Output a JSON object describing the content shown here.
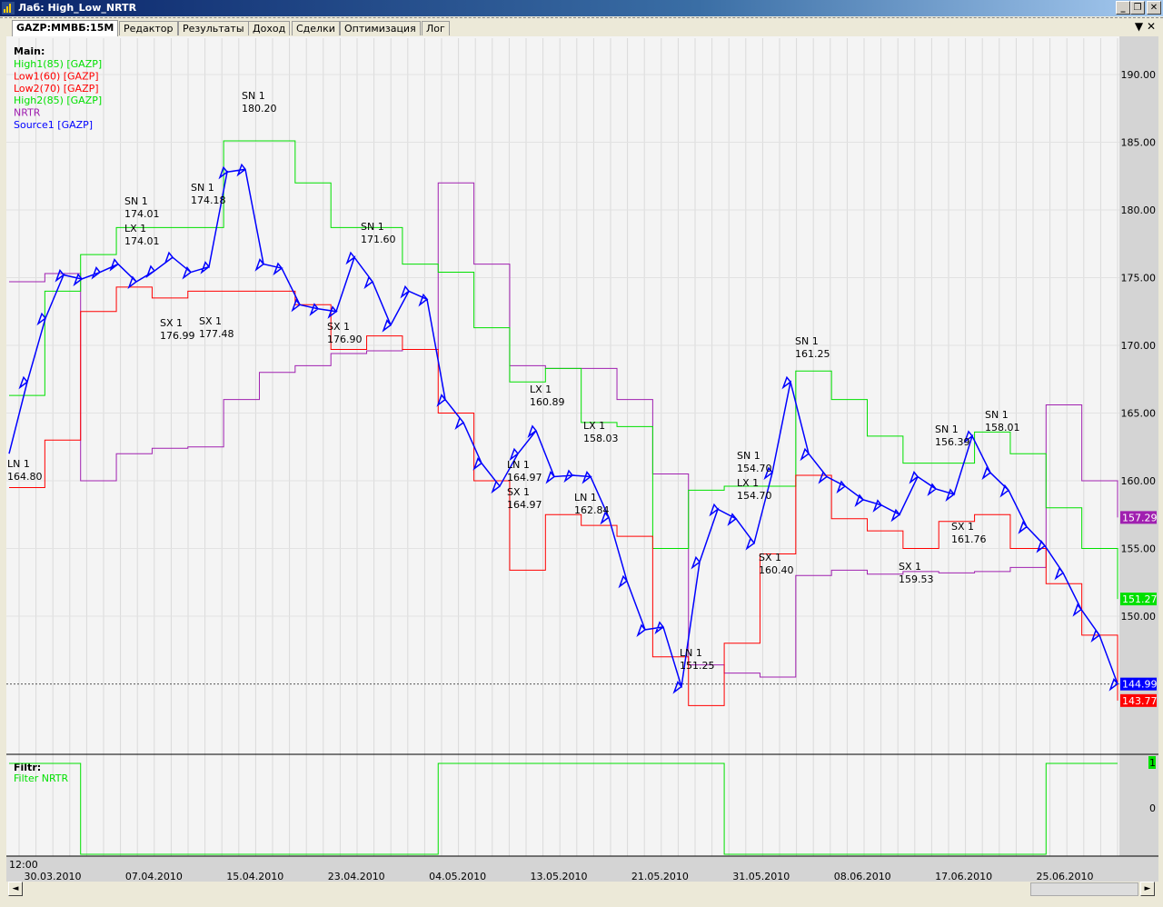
{
  "window": {
    "title": "Лаб: High_Low_NRTR",
    "minimize": "_",
    "restore": "❐",
    "close": "✕"
  },
  "tabs": [
    {
      "label": "GAZP:MMBБ:15M",
      "active": true
    },
    {
      "label": "Редактор"
    },
    {
      "label": "Результаты"
    },
    {
      "label": "Доход"
    },
    {
      "label": "Сделки"
    },
    {
      "label": "Оптимизация"
    },
    {
      "label": "Лог"
    }
  ],
  "tab_controls": {
    "menu": "▼",
    "close": "✕"
  },
  "colors": {
    "high": "#00e000",
    "low": "#ff0000",
    "nrtr": "#a020b0",
    "source": "#0000ff",
    "trend_down": "#8b0000",
    "filter": "#00e000"
  },
  "chart_data": [
    {
      "type": "line",
      "pane": "Main",
      "title": "Main:",
      "legend": [
        {
          "name": "High1(85) [GAZP]",
          "color": "#00e000"
        },
        {
          "name": "Low1(60) [GAZP]",
          "color": "#ff0000"
        },
        {
          "name": "Low2(70) [GAZP]",
          "color": "#ff0000"
        },
        {
          "name": "High2(85) [GAZP]",
          "color": "#00e000"
        },
        {
          "name": "NRTR",
          "color": "#a020b0"
        },
        {
          "name": "Source1 [GAZP]",
          "color": "#0000ff"
        }
      ],
      "ylim": [
        140,
        192
      ],
      "yticks": [
        150,
        155,
        160,
        165,
        170,
        175,
        180,
        185,
        190
      ],
      "ytick_labels": [
        "150.00",
        "155.00",
        "160.00",
        "165.00",
        "170.00",
        "175.00",
        "180.00",
        "185.00",
        "190.00"
      ],
      "series": [
        {
          "name": "Source1 [GAZP]",
          "values": [
            162.0,
            167.3,
            172,
            175.2,
            174.9,
            175.4,
            176,
            174.7,
            175.5,
            176.5,
            175.4,
            175.8,
            182.8,
            183,
            176,
            175.7,
            173,
            172.7,
            172.5,
            176.5,
            174.7,
            171.5,
            174,
            173.4,
            166,
            164.3,
            161.3,
            159.6,
            162,
            163.7,
            160.3,
            160.4,
            160.3,
            157.3,
            152.6,
            149,
            149.2,
            144.8,
            154,
            157.9,
            157.2,
            155.4,
            160.6,
            167.3,
            162,
            160.3,
            159.6,
            158.6,
            158.2,
            157.5,
            160.3,
            159.4,
            159,
            163.3,
            160.6,
            159.3,
            156.6,
            155.2,
            153.2,
            150.5,
            148.6,
            145
          ]
        },
        {
          "name": "High1(85) [GAZP]",
          "values": [
            166.3,
            174,
            176.7,
            178.7,
            178.7,
            178.7,
            185.1,
            185.1,
            182,
            178.7,
            178.7,
            176,
            175.4,
            171.3,
            167.3,
            168.3,
            164.3,
            164,
            155,
            159.3,
            159.6,
            159.6,
            168.1,
            166,
            163.3,
            161.3,
            161.3,
            163.6,
            162,
            158,
            155,
            151.27
          ]
        },
        {
          "name": "Low1(60) [GAZP]",
          "values": [
            159.5,
            163,
            172.5,
            174.3,
            173.5,
            174,
            174,
            174,
            173,
            169.7,
            170.7,
            169.7,
            165,
            160,
            153.4,
            157.5,
            156.7,
            155.9,
            147,
            143.4,
            148,
            154.6,
            160.4,
            157.2,
            156.3,
            155,
            157,
            157.5,
            155,
            152.4,
            148.6,
            143.77
          ]
        },
        {
          "name": "NRTR",
          "values": [
            174.7,
            175.3,
            160,
            162,
            162.4,
            162.5,
            166,
            168,
            168.5,
            169.4,
            169.6,
            169.7,
            182,
            176,
            168.5,
            168.3,
            168.3,
            166,
            160.5,
            146.4,
            145.8,
            145.5,
            153,
            153.4,
            153.1,
            153.3,
            153.2,
            153.3,
            153.6,
            165.6,
            160,
            157.29
          ]
        }
      ],
      "last_values": [
        {
          "value": "157.29",
          "color": "#a020b0"
        },
        {
          "value": "151.27",
          "color": "#00e000"
        },
        {
          "value": "144.99",
          "color": "#0000ff"
        },
        {
          "value": "143.77",
          "color": "#ff0000"
        }
      ],
      "annotations": [
        {
          "signal": "LN 1",
          "price": "164.80"
        },
        {
          "signal": "SN 1",
          "price": "174.01"
        },
        {
          "signal": "LX 1",
          "price": "174.01"
        },
        {
          "signal": "SN 1",
          "price": "174.18"
        },
        {
          "signal": "SN 1",
          "price": "180.20"
        },
        {
          "signal": "SX 1",
          "price": "176.99"
        },
        {
          "signal": "SX 1",
          "price": "177.48"
        },
        {
          "signal": "SN 1",
          "price": "171.60"
        },
        {
          "signal": "SX 1",
          "price": "176.90"
        },
        {
          "signal": "LX 1",
          "price": "160.89"
        },
        {
          "signal": "LX 1",
          "price": "158.03"
        },
        {
          "signal": "LN 1",
          "price": "164.97"
        },
        {
          "signal": "SX 1",
          "price": "164.97"
        },
        {
          "signal": "LN 1",
          "price": "162.84"
        },
        {
          "signal": "SN 1",
          "price": "161.25"
        },
        {
          "signal": "SN 1",
          "price": "154.70"
        },
        {
          "signal": "LX 1",
          "price": "154.70"
        },
        {
          "signal": "SX 1",
          "price": "160.40"
        },
        {
          "signal": "LN 1",
          "price": "151.25"
        },
        {
          "signal": "SX 1",
          "price": "159.53"
        },
        {
          "signal": "SN 1",
          "price": "156.39"
        },
        {
          "signal": "SN 1",
          "price": "158.01"
        },
        {
          "signal": "SX 1",
          "price": "161.76"
        }
      ]
    },
    {
      "type": "line",
      "pane": "Filtr",
      "title": "Filtr:",
      "legend": [
        {
          "name": "Filter NRTR",
          "color": "#00e000"
        }
      ],
      "ylim": [
        0,
        1
      ],
      "ytick_labels": [
        "0",
        "1"
      ],
      "series": [
        {
          "name": "Filter NRTR",
          "values": [
            1,
            1,
            0,
            0,
            0,
            0,
            0,
            0,
            0,
            0,
            0,
            0,
            1,
            1,
            1,
            1,
            1,
            1,
            1,
            1,
            0,
            0,
            0,
            0,
            0,
            0,
            0,
            0,
            0,
            1,
            1,
            1
          ]
        }
      ]
    }
  ],
  "xaxis": {
    "time": "12:00",
    "dates": [
      "30.03.2010",
      "07.04.2010",
      "15.04.2010",
      "23.04.2010",
      "04.05.2010",
      "13.05.2010",
      "21.05.2010",
      "31.05.2010",
      "08.06.2010",
      "17.06.2010",
      "25.06.2010"
    ]
  },
  "scroll": {
    "left": "◄",
    "right": "►"
  }
}
